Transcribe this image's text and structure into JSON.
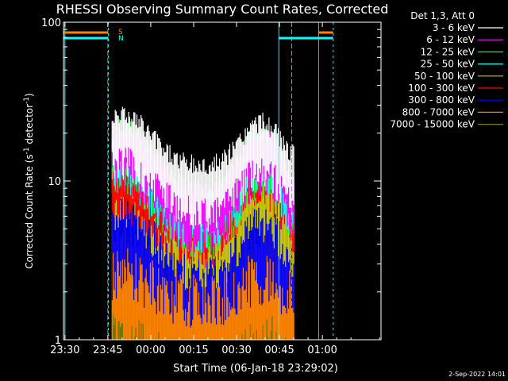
{
  "chart_data": {
    "type": "line",
    "title": "RHESSI Observing Summary Count Rates, Corrected",
    "xlabel": "Start Time (06-Jan-18 23:29:02)",
    "ylabel_main": "Corrected Count Rate (s",
    "ylabel_sup1": "-1",
    "ylabel_mid": " detector",
    "ylabel_sup2": "-1",
    "ylabel_end": ")",
    "yscale": "log",
    "ylim": [
      1,
      100
    ],
    "xlim_min": [
      -29,
      82
    ],
    "x_ticks": [
      {
        "label": "23:30",
        "min": -28.5
      },
      {
        "label": "23:45",
        "min": -13.5
      },
      {
        "label": "00:00",
        "min": 1.5
      },
      {
        "label": "00:15",
        "min": 16.5
      },
      {
        "label": "00:30",
        "min": 31.5
      },
      {
        "label": "00:45",
        "min": 46.5
      },
      {
        "label": "01:00",
        "min": 61.5
      }
    ],
    "y_ticks": [
      {
        "label": "100",
        "value": 100
      },
      {
        "label": "10",
        "value": 10
      },
      {
        "label": "1",
        "value": 1
      }
    ],
    "legend_header": "Det 1,3, Att 0",
    "legend_placement": "top-right, outside plot",
    "series": [
      {
        "name": "3 - 6 keV",
        "color": "#ffffff"
      },
      {
        "name": "6 - 12 keV",
        "color": "#ff00ff"
      },
      {
        "name": "12 - 25 keV",
        "color": "#00ff00"
      },
      {
        "name": "25 - 50 keV",
        "color": "#00ffff"
      },
      {
        "name": "50 - 100 keV",
        "color": "#cccc00"
      },
      {
        "name": "100 - 300 keV",
        "color": "#ff0000"
      },
      {
        "name": "300 - 800 keV",
        "color": "#0000ff"
      },
      {
        "name": "800 - 7000 keV",
        "color": "#ff8000"
      },
      {
        "name": "7000 - 15000 keV",
        "color": "#808000"
      }
    ],
    "flag_labels": [
      "S",
      "N"
    ],
    "timestamp": "2-Sep-2022 14:01"
  }
}
